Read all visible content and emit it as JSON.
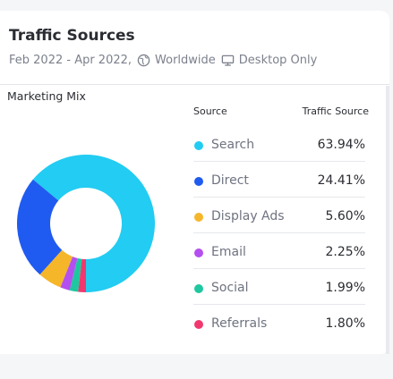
{
  "header": {
    "title": "Traffic Sources",
    "date_range": "Feb 2022 - Apr 2022,",
    "region": "Worldwide",
    "device": "Desktop Only"
  },
  "chart_label": "Marketing Mix",
  "table": {
    "col_source": "Source",
    "col_value": "Traffic Source"
  },
  "chart_data": {
    "type": "pie",
    "categories": [
      "Search",
      "Direct",
      "Display Ads",
      "Email",
      "Social",
      "Referrals"
    ],
    "values": [
      63.94,
      24.41,
      5.6,
      2.25,
      1.99,
      1.8
    ],
    "labels": [
      "63.94%",
      "24.41%",
      "5.60%",
      "2.25%",
      "1.99%",
      "1.80%"
    ],
    "colors": [
      "#22ccf2",
      "#1f5bf0",
      "#f5b62a",
      "#b44ff0",
      "#1fc7a0",
      "#f0386f"
    ],
    "donut": true
  },
  "icons": {
    "region": "globe-icon",
    "device": "monitor-icon"
  }
}
